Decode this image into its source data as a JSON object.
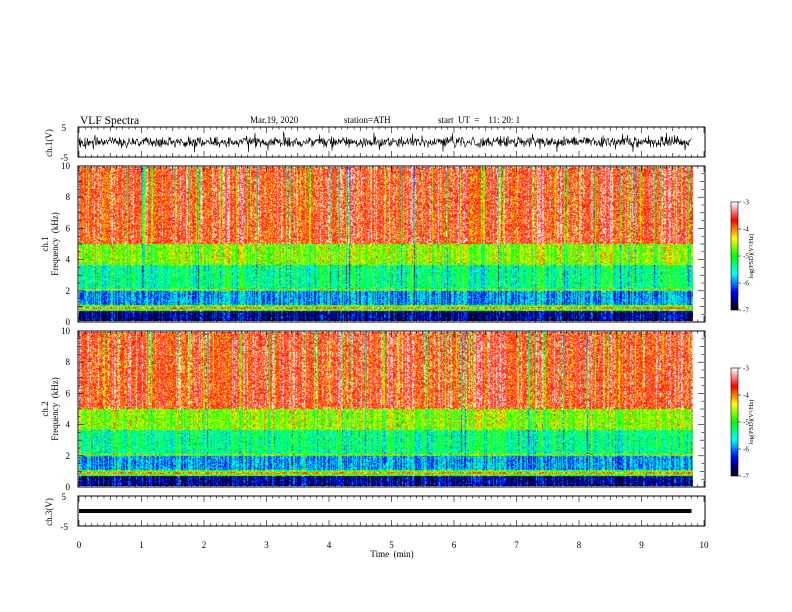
{
  "header": {
    "title": "VLF  Spectra",
    "date": "Mar.19, 2020",
    "station": "station=ATH",
    "start": "start  UT  =    11: 20: 1"
  },
  "chart_data": {
    "type": "heatmap",
    "title": "VLF  Spectra",
    "xlabel": "Time  (min)",
    "xlim": [
      0,
      10
    ],
    "x_ticks": [
      "0",
      "1",
      "2",
      "3",
      "4",
      "5",
      "6",
      "7",
      "8",
      "9",
      "10"
    ],
    "data_end_min": 9.8,
    "panels": [
      {
        "id": "ch1-waveform",
        "type": "line",
        "ylabel": "ch.1(V)",
        "ylim": [
          -5,
          5
        ],
        "y_ticks": [
          "5",
          "-5"
        ],
        "amplitude_typical": 1.5,
        "amplitude_peak": 3.5,
        "color": "#000000"
      },
      {
        "id": "ch1-spectrogram",
        "type": "heatmap",
        "ylabel_line1": "ch.1",
        "ylabel_line2": "Frequency  (kHz)",
        "ylim": [
          0,
          10
        ],
        "y_ticks": [
          "0",
          "2",
          "4",
          "6",
          "8",
          "10"
        ],
        "band_levels": [
          {
            "from_khz": 0.0,
            "to_khz": 0.6,
            "log_psd": -6.6
          },
          {
            "from_khz": 0.6,
            "to_khz": 1.0,
            "log_psd": -4.9
          },
          {
            "from_khz": 1.0,
            "to_khz": 2.0,
            "log_psd": -5.9
          },
          {
            "from_khz": 2.0,
            "to_khz": 3.6,
            "log_psd": -5.3
          },
          {
            "from_khz": 3.6,
            "to_khz": 5.0,
            "log_psd": -4.6
          },
          {
            "from_khz": 5.0,
            "to_khz": 10.0,
            "log_psd": -3.6
          }
        ]
      },
      {
        "id": "ch2-spectrogram",
        "type": "heatmap",
        "ylabel_line1": "ch.2",
        "ylabel_line2": "Frequency  (kHz)",
        "ylim": [
          0,
          10
        ],
        "y_ticks": [
          "0",
          "2",
          "4",
          "6",
          "8",
          "10"
        ],
        "band_levels": [
          {
            "from_khz": 0.0,
            "to_khz": 0.6,
            "log_psd": -6.6
          },
          {
            "from_khz": 0.6,
            "to_khz": 1.0,
            "log_psd": -4.9
          },
          {
            "from_khz": 1.0,
            "to_khz": 2.0,
            "log_psd": -5.9
          },
          {
            "from_khz": 2.0,
            "to_khz": 3.6,
            "log_psd": -5.3
          },
          {
            "from_khz": 3.6,
            "to_khz": 5.0,
            "log_psd": -4.6
          },
          {
            "from_khz": 5.0,
            "to_khz": 10.0,
            "log_psd": -3.6
          }
        ]
      },
      {
        "id": "ch3-waveform",
        "type": "line",
        "ylabel": "ch.3(V)",
        "ylim": [
          -5,
          5
        ],
        "y_ticks": [
          "5",
          "-5"
        ],
        "level_v": 0,
        "color": "#000000"
      }
    ],
    "colorbar": {
      "label": "log(PSD)(V²/Hz)",
      "range": [
        -7,
        -3
      ],
      "ticks": [
        "-3",
        "-4",
        "-5",
        "-6",
        "-7"
      ],
      "colors": [
        "#000000",
        "#0000ff",
        "#00ffff",
        "#00ff00",
        "#ffff00",
        "#ff0000",
        "#ffffff"
      ]
    }
  }
}
